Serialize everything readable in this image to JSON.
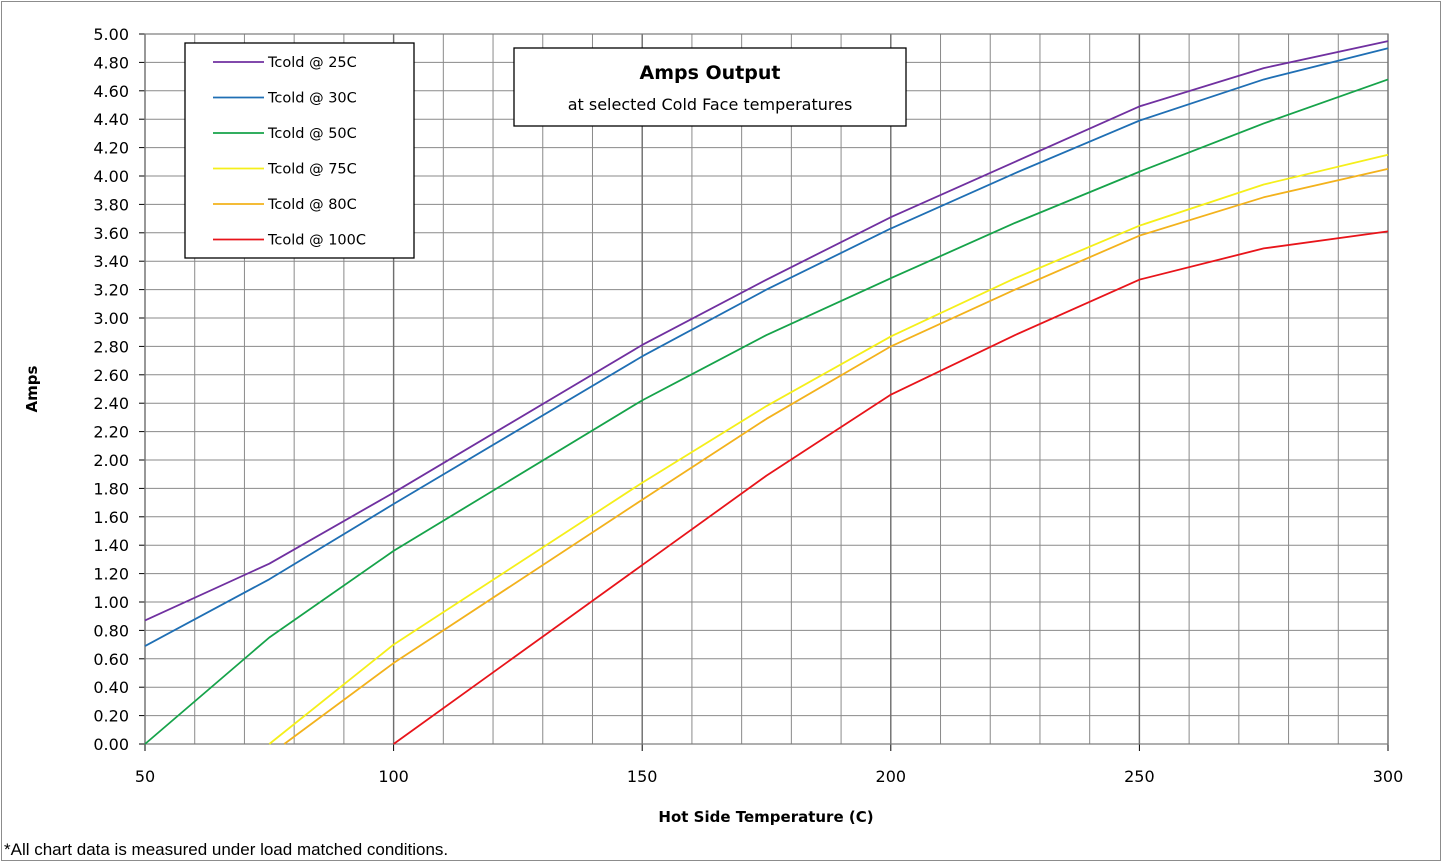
{
  "chart_data": {
    "type": "line",
    "title": "Amps Output",
    "subtitle": "at selected Cold Face temperatures",
    "xlabel": "Hot Side Temperature (C)",
    "ylabel": "Amps",
    "xlim": [
      50,
      300
    ],
    "ylim": [
      0,
      5
    ],
    "x_ticks": [
      50,
      100,
      150,
      200,
      250,
      300
    ],
    "x_minor_step": 10,
    "y_tick_step": 0.2,
    "y_tick_decimals": 2,
    "grid": true,
    "legend_position": "top-left",
    "series": [
      {
        "name": "Tcold @ 25C",
        "color": "#7030a0",
        "points": [
          [
            50,
            0.87
          ],
          [
            75,
            1.27
          ],
          [
            100,
            1.77
          ],
          [
            150,
            2.81
          ],
          [
            175,
            3.27
          ],
          [
            200,
            3.71
          ],
          [
            225,
            4.1
          ],
          [
            250,
            4.49
          ],
          [
            275,
            4.76
          ],
          [
            300,
            4.95
          ]
        ]
      },
      {
        "name": "Tcold @ 30C",
        "color": "#1f6fb4",
        "points": [
          [
            50,
            0.69
          ],
          [
            75,
            1.16
          ],
          [
            100,
            1.69
          ],
          [
            150,
            2.73
          ],
          [
            175,
            3.2
          ],
          [
            200,
            3.63
          ],
          [
            225,
            4.02
          ],
          [
            250,
            4.39
          ],
          [
            275,
            4.68
          ],
          [
            300,
            4.9
          ]
        ]
      },
      {
        "name": "Tcold @ 50C",
        "color": "#16a34a",
        "points": [
          [
            50,
            0.0
          ],
          [
            75,
            0.75
          ],
          [
            100,
            1.36
          ],
          [
            150,
            2.42
          ],
          [
            175,
            2.88
          ],
          [
            200,
            3.28
          ],
          [
            225,
            3.67
          ],
          [
            250,
            4.03
          ],
          [
            275,
            4.37
          ],
          [
            300,
            4.68
          ]
        ]
      },
      {
        "name": "Tcold @ 75C",
        "color": "#f5ef1a",
        "points": [
          [
            75,
            0.0
          ],
          [
            100,
            0.7
          ],
          [
            150,
            1.84
          ],
          [
            175,
            2.38
          ],
          [
            200,
            2.87
          ],
          [
            225,
            3.28
          ],
          [
            250,
            3.65
          ],
          [
            275,
            3.94
          ],
          [
            300,
            4.15
          ]
        ]
      },
      {
        "name": "Tcold @ 80C",
        "color": "#f3b21c",
        "points": [
          [
            78,
            0.0
          ],
          [
            100,
            0.57
          ],
          [
            150,
            1.72
          ],
          [
            175,
            2.29
          ],
          [
            200,
            2.8
          ],
          [
            225,
            3.2
          ],
          [
            250,
            3.58
          ],
          [
            275,
            3.85
          ],
          [
            300,
            4.05
          ]
        ]
      },
      {
        "name": "Tcold @ 100C",
        "color": "#e8141a",
        "points": [
          [
            100,
            0.0
          ],
          [
            150,
            1.26
          ],
          [
            175,
            1.89
          ],
          [
            200,
            2.46
          ],
          [
            225,
            2.88
          ],
          [
            250,
            3.27
          ],
          [
            275,
            3.49
          ],
          [
            300,
            3.61
          ]
        ]
      }
    ]
  },
  "footnote": "*All chart data is measured under load matched conditions."
}
